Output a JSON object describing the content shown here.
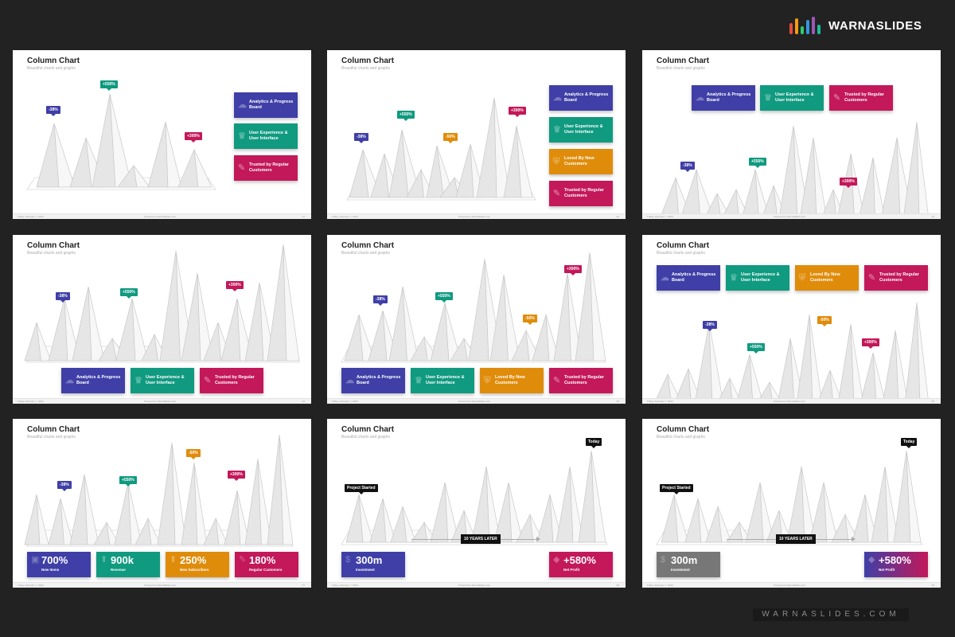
{
  "brand": {
    "name": "WARNASLIDES",
    "bar_colors": [
      "#e74c3c",
      "#f39c12",
      "#2ecc71",
      "#3498db",
      "#9b59b6",
      "#1abc9c"
    ],
    "url": "WARNASLIDES.COM"
  },
  "colors": {
    "blue": "#3f3fa7",
    "green": "#109a80",
    "orange": "#e08c0b",
    "red": "#c3185a",
    "gray": "#777777",
    "black": "#111111"
  },
  "slides": [
    {
      "title": "Column Chart",
      "subtitle": "Beautiful charts and graphs",
      "footer_left": "Friday, February 7, 2020",
      "footer_center": "Powered by WarnaSlides.com",
      "footer_right": "01",
      "badges": [
        {
          "label": "-38%",
          "color": "blue"
        },
        {
          "label": "+550%",
          "color": "green"
        },
        {
          "label": "+300%",
          "color": "red"
        }
      ],
      "cards": [
        {
          "label": "Analytics & Progress Board",
          "color": "blue",
          "icon": "brain-icon"
        },
        {
          "label": "User Experience & User Interface",
          "color": "green",
          "icon": "trophy-icon"
        },
        {
          "label": "Trusted by Regular Customers",
          "color": "red",
          "icon": "chart-icon"
        }
      ]
    },
    {
      "title": "Column Chart",
      "subtitle": "Beautiful charts and graphs",
      "footer_left": "Friday, February 7, 2020",
      "footer_center": "Powered by WarnaSlides.com",
      "footer_right": "02",
      "badges": [
        {
          "label": "-38%",
          "color": "blue"
        },
        {
          "label": "+550%",
          "color": "green"
        },
        {
          "label": "-50%",
          "color": "orange"
        },
        {
          "label": "+300%",
          "color": "red"
        }
      ],
      "cards": [
        {
          "label": "Analytics & Progress Board",
          "color": "blue",
          "icon": "brain-icon"
        },
        {
          "label": "User Experience & User Interface",
          "color": "green",
          "icon": "trophy-icon"
        },
        {
          "label": "Loved By New Customers",
          "color": "orange",
          "icon": "shield-icon"
        },
        {
          "label": "Trusted by Regular Customers",
          "color": "red",
          "icon": "chart-icon"
        }
      ]
    },
    {
      "title": "Column Chart",
      "subtitle": "Beautiful charts and graphs",
      "footer_left": "Friday, February 7, 2020",
      "footer_center": "Powered by WarnaSlides.com",
      "footer_right": "03",
      "badges": [
        {
          "label": "-38%",
          "color": "blue"
        },
        {
          "label": "+550%",
          "color": "green"
        },
        {
          "label": "+300%",
          "color": "red"
        }
      ],
      "cards": [
        {
          "label": "Analytics & Progress Board",
          "color": "blue",
          "icon": "brain-icon"
        },
        {
          "label": "User Experience & User Interface",
          "color": "green",
          "icon": "trophy-icon"
        },
        {
          "label": "Trusted by Regular Customers",
          "color": "red",
          "icon": "chart-icon"
        }
      ]
    },
    {
      "title": "Column Chart",
      "subtitle": "Beautiful charts and graphs",
      "footer_left": "Friday, February 7, 2020",
      "footer_center": "Powered by WarnaSlides.com",
      "footer_right": "04",
      "badges": [
        {
          "label": "-38%",
          "color": "blue"
        },
        {
          "label": "+550%",
          "color": "green"
        },
        {
          "label": "+300%",
          "color": "red"
        }
      ],
      "cards": [
        {
          "label": "Analytics & Progress Board",
          "color": "blue",
          "icon": "brain-icon"
        },
        {
          "label": "User Experience & User Interface",
          "color": "green",
          "icon": "trophy-icon"
        },
        {
          "label": "Trusted by Regular Customers",
          "color": "red",
          "icon": "chart-icon"
        }
      ]
    },
    {
      "title": "Column Chart",
      "subtitle": "Beautiful charts and graphs",
      "footer_left": "Friday, February 7, 2020",
      "footer_center": "Powered by WarnaSlides.com",
      "footer_right": "05",
      "badges": [
        {
          "label": "-38%",
          "color": "blue"
        },
        {
          "label": "+550%",
          "color": "green"
        },
        {
          "label": "-50%",
          "color": "orange"
        },
        {
          "label": "+300%",
          "color": "red"
        }
      ],
      "cards": [
        {
          "label": "Analytics & Progress Board",
          "color": "blue",
          "icon": "brain-icon"
        },
        {
          "label": "User Experience & User Interface",
          "color": "green",
          "icon": "trophy-icon"
        },
        {
          "label": "Loved By New Customers",
          "color": "orange",
          "icon": "shield-icon"
        },
        {
          "label": "Trusted by Regular Customers",
          "color": "red",
          "icon": "chart-icon"
        }
      ]
    },
    {
      "title": "Column Chart",
      "subtitle": "Beautiful charts and graphs",
      "footer_left": "Friday, February 7, 2020",
      "footer_center": "Powered by WarnaSlides.com",
      "footer_right": "06",
      "badges": [
        {
          "label": "-38%",
          "color": "blue"
        },
        {
          "label": "+550%",
          "color": "green"
        },
        {
          "label": "-50%",
          "color": "orange"
        },
        {
          "label": "+300%",
          "color": "red"
        }
      ],
      "cards": [
        {
          "label": "Analytics & Progress Board",
          "color": "blue",
          "icon": "brain-icon"
        },
        {
          "label": "User Experience & User Interface",
          "color": "green",
          "icon": "trophy-icon"
        },
        {
          "label": "Loved By New Customers",
          "color": "orange",
          "icon": "shield-icon"
        },
        {
          "label": "Trusted by Regular Customers",
          "color": "red",
          "icon": "chart-icon"
        }
      ]
    },
    {
      "title": "Column Chart",
      "subtitle": "Beautiful charts and graphs",
      "footer_left": "Friday, February 7, 2020",
      "footer_center": "Powered by WarnaSlides.com",
      "footer_right": "07",
      "badges": [
        {
          "label": "-38%",
          "color": "blue"
        },
        {
          "label": "+550%",
          "color": "green"
        },
        {
          "label": "-50%",
          "color": "orange"
        },
        {
          "label": "+300%",
          "color": "red"
        }
      ],
      "stats": [
        {
          "value": "700%",
          "label": "New Items",
          "color": "blue",
          "icon": "box-icon"
        },
        {
          "value": "900k",
          "label": "Revenue",
          "color": "green",
          "icon": "arrow-up-icon"
        },
        {
          "value": "250%",
          "label": "New Subscribers",
          "color": "orange",
          "icon": "arrow-up-icon"
        },
        {
          "value": "180%",
          "label": "Regular Customers",
          "color": "red",
          "icon": "chart-icon"
        }
      ]
    },
    {
      "title": "Column Chart",
      "subtitle": "Beautiful charts and graphs",
      "footer_left": "Friday, February 7, 2020",
      "footer_center": "Powered by WarnaSlides.com",
      "footer_right": "08",
      "markers": [
        {
          "label": "Project Started"
        },
        {
          "label": "Today"
        }
      ],
      "stats": [
        {
          "value": "300m",
          "label": "Investment",
          "color": "blue",
          "icon": "money-icon"
        },
        {
          "value": "+580%",
          "label": "Net Profit",
          "color": "red",
          "icon": "diamond-icon"
        }
      ],
      "timeline_label": "10 YEARS LATER"
    },
    {
      "title": "Column Chart",
      "subtitle": "Beautiful charts and graphs",
      "footer_left": "Friday, February 7, 2020",
      "footer_center": "Powered by WarnaSlides.com",
      "footer_right": "09",
      "markers": [
        {
          "label": "Project Started"
        },
        {
          "label": "Today"
        }
      ],
      "stats": [
        {
          "value": "300m",
          "label": "Investment",
          "color": "gray",
          "icon": "money-icon"
        },
        {
          "value": "+580%",
          "label": "Net Profit",
          "color": "blue",
          "icon": "diamond-icon"
        }
      ],
      "timeline_label": "10 YEARS LATER"
    }
  ]
}
